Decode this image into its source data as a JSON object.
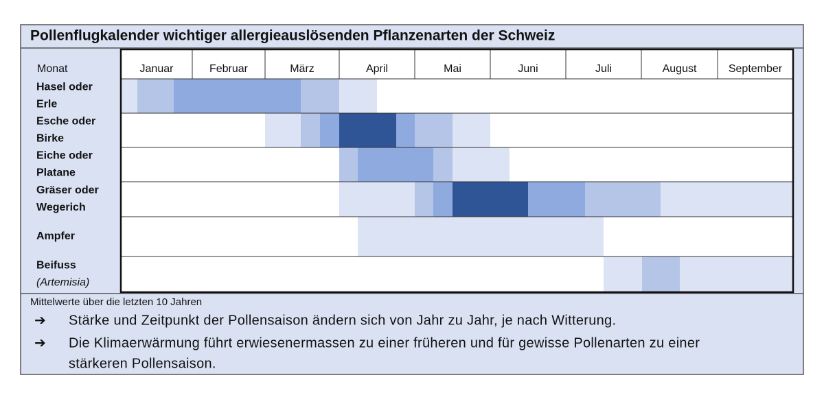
{
  "header": {
    "title": "Pollenflugkalender wichtiger allergieauslösenden Pflanzenarten der Schweiz"
  },
  "table": {
    "corner": "Monat",
    "months": [
      "Januar",
      "Februar",
      "März",
      "April",
      "Mai",
      "Juni",
      "Juli",
      "August",
      "September"
    ],
    "rows": [
      {
        "lines": [
          "Hasel oder",
          "Erle"
        ]
      },
      {
        "lines": [
          "Esche oder",
          "Birke"
        ]
      },
      {
        "lines": [
          "Eiche oder",
          "Platane"
        ]
      },
      {
        "lines": [
          "Gräser oder",
          "Wegerich"
        ]
      },
      {
        "lines": [
          "Ampfer"
        ]
      },
      {
        "lines": [
          "Beifuss"
        ],
        "sublabel": "(Artemisia)"
      }
    ]
  },
  "footer": {
    "note": "Mittelwerte über die letzten 10 Jahren",
    "bullets": [
      {
        "lines": [
          "Stärke und Zeitpunkt der Pollensaison ändern sich von Jahr zu Jahr, je nach Witterung."
        ]
      },
      {
        "lines": [
          "Die Klimaerwärmung führt erwiesenermassen zu einer früheren und für gewisse Pollenarten zu einer",
          "stärkeren Pollensaison."
        ]
      }
    ]
  }
}
